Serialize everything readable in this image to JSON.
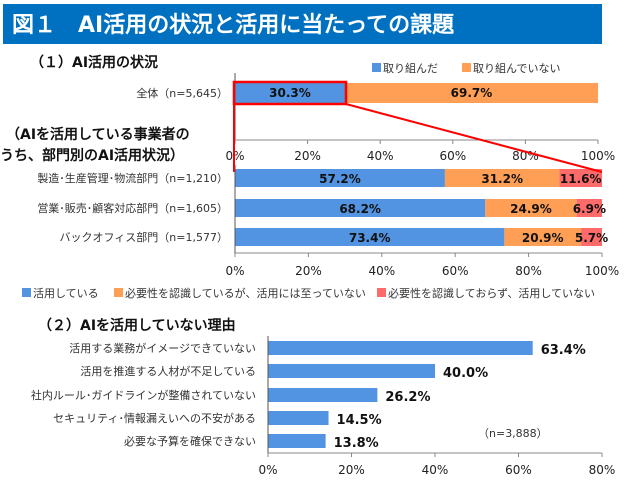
{
  "title": "図１　AI活用の状況と活用に当たっての課題",
  "colors": {
    "title_bg": "#0070c0",
    "blue": "#5294e2",
    "orange": "#ff9f55",
    "red": "#ff6b6b",
    "highlight": "#ff0000"
  },
  "chart_data": [
    {
      "type": "bar",
      "orientation": "horizontal-stacked",
      "title": "（１）AI活用の状況",
      "categories": [
        "全体（n=5,645）"
      ],
      "series": [
        {
          "name": "取り組んだ",
          "values": [
            30.3
          ],
          "labels": [
            "30.3%"
          ]
        },
        {
          "name": "取り組んでいない",
          "values": [
            69.7
          ],
          "labels": [
            "69.7%"
          ]
        }
      ],
      "xlim": [
        0,
        100
      ],
      "ticks": [
        "0%",
        "20%",
        "40%",
        "60%",
        "80%",
        "100%"
      ],
      "legend": "top-right"
    },
    {
      "type": "bar",
      "orientation": "horizontal-stacked",
      "title": "（AIを活用している事業者の\nうち、部門別のAI活用状況）",
      "title_lines": [
        "（AIを活用している事業者の",
        "うち、部門別のAI活用状況）"
      ],
      "categories": [
        "製造･生産管理･物流部門（n=1,210）",
        "営業･販売･顧客対応部門（n=1,605）",
        "バックオフィス部門（n=1,577）"
      ],
      "series": [
        {
          "name": "活用している",
          "values": [
            57.2,
            68.2,
            73.4
          ],
          "labels": [
            "57.2%",
            "68.2%",
            "73.4%"
          ]
        },
        {
          "name": "必要性を認識しているが、活用には至っていない",
          "values": [
            31.2,
            24.9,
            20.9
          ],
          "labels": [
            "31.2%",
            "24.9%",
            "20.9%"
          ]
        },
        {
          "name": "必要性を認識しておらず、活用していない",
          "values": [
            11.6,
            6.9,
            5.7
          ],
          "labels": [
            "11.6%",
            "6.9%",
            "5.7%"
          ]
        }
      ],
      "xlim": [
        0,
        100
      ],
      "ticks": [
        "0%",
        "20%",
        "40%",
        "60%",
        "80%",
        "100%"
      ],
      "legend": "bottom"
    },
    {
      "type": "bar",
      "orientation": "horizontal",
      "title": "（２）AIを活用していない理由",
      "categories": [
        "活用する業務がイメージできていない",
        "活用を推進する人材が不足している",
        "社内ルール･ガイドラインが整備されていない",
        "セキュリティ･情報漏えいへの不安がある",
        "必要な予算を確保できない"
      ],
      "values": [
        63.4,
        40.0,
        26.2,
        14.5,
        13.8
      ],
      "labels": [
        "63.4%",
        "40.0%",
        "26.2%",
        "14.5%",
        "13.8%"
      ],
      "note": "（n=3,888）",
      "xlim": [
        0,
        80
      ],
      "ticks": [
        "0%",
        "20%",
        "40%",
        "60%",
        "80%"
      ]
    }
  ]
}
